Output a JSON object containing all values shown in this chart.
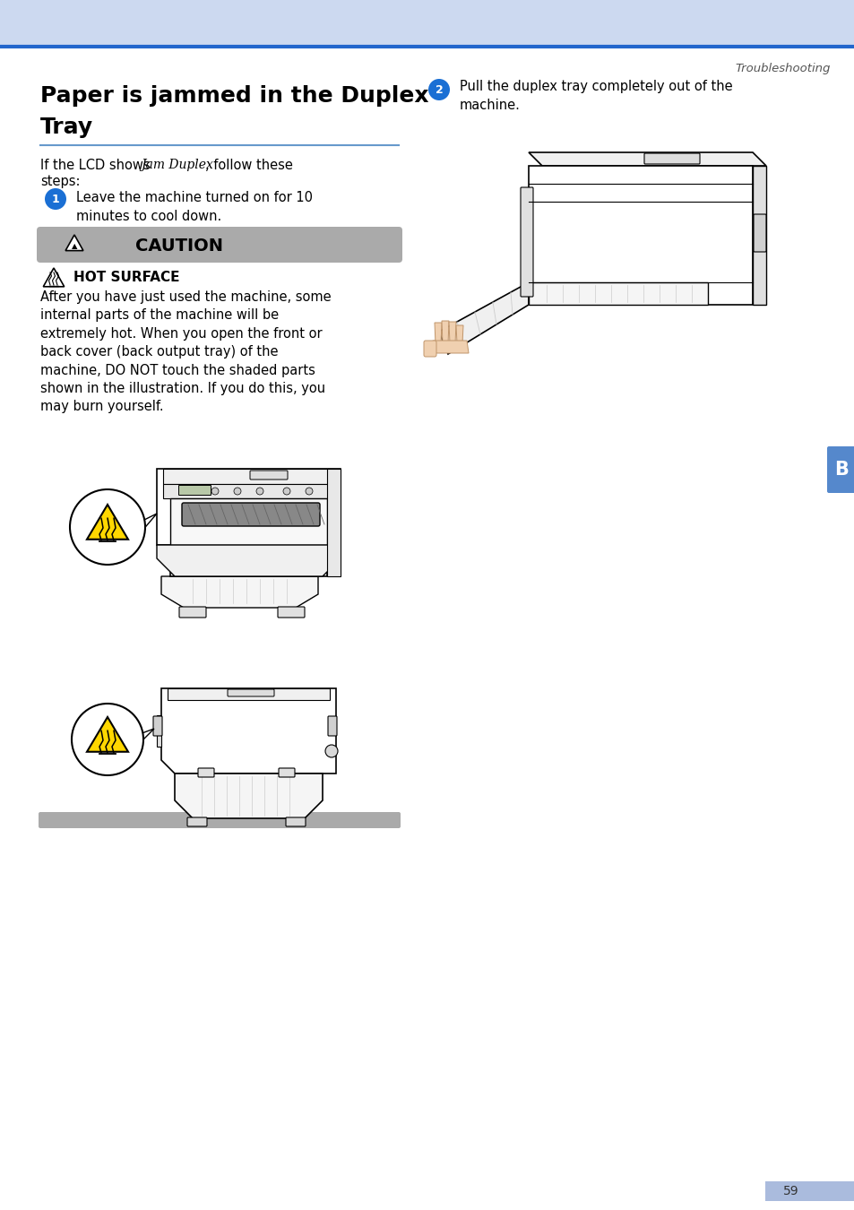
{
  "page_bg": "#ffffff",
  "header_bg": "#ccd9f0",
  "header_line_color": "#2266cc",
  "section_label": "Troubleshooting",
  "section_label_color": "#555555",
  "title_line1": "Paper is jammed in the Duplex",
  "title_line2": "Tray",
  "title_color": "#000000",
  "title_underline_color": "#6699cc",
  "body_intro_pre": "If the LCD shows ",
  "body_intro_mono": "Jam Duplex",
  "body_intro_post": ", follow these\nsteps:",
  "step1_text": "Leave the machine turned on for 10\nminutes to cool down.",
  "step2_text": "Pull the duplex tray completely out of the\nmachine.",
  "caution_bg": "#aaaaaa",
  "caution_text": "CAUTION",
  "hot_surface_text": "HOT SURFACE",
  "hot_surface_body": "After you have just used the machine, some\ninternal parts of the machine will be\nextremely hot. When you open the front or\nback cover (back output tray) of the\nmachine, DO NOT touch the shaded parts\nshown in the illustration. If you do this, you\nmay burn yourself.",
  "sidebar_bg": "#5588cc",
  "sidebar_label": "B",
  "page_number": "59",
  "page_num_bg": "#aabbdd",
  "step_circle_color": "#1a6fd4",
  "step_text_color": "#ffffff",
  "bottom_bar_color": "#aaaaaa",
  "caution_triangle_color": "#000000",
  "yellow_tri_color": "#FFD700"
}
